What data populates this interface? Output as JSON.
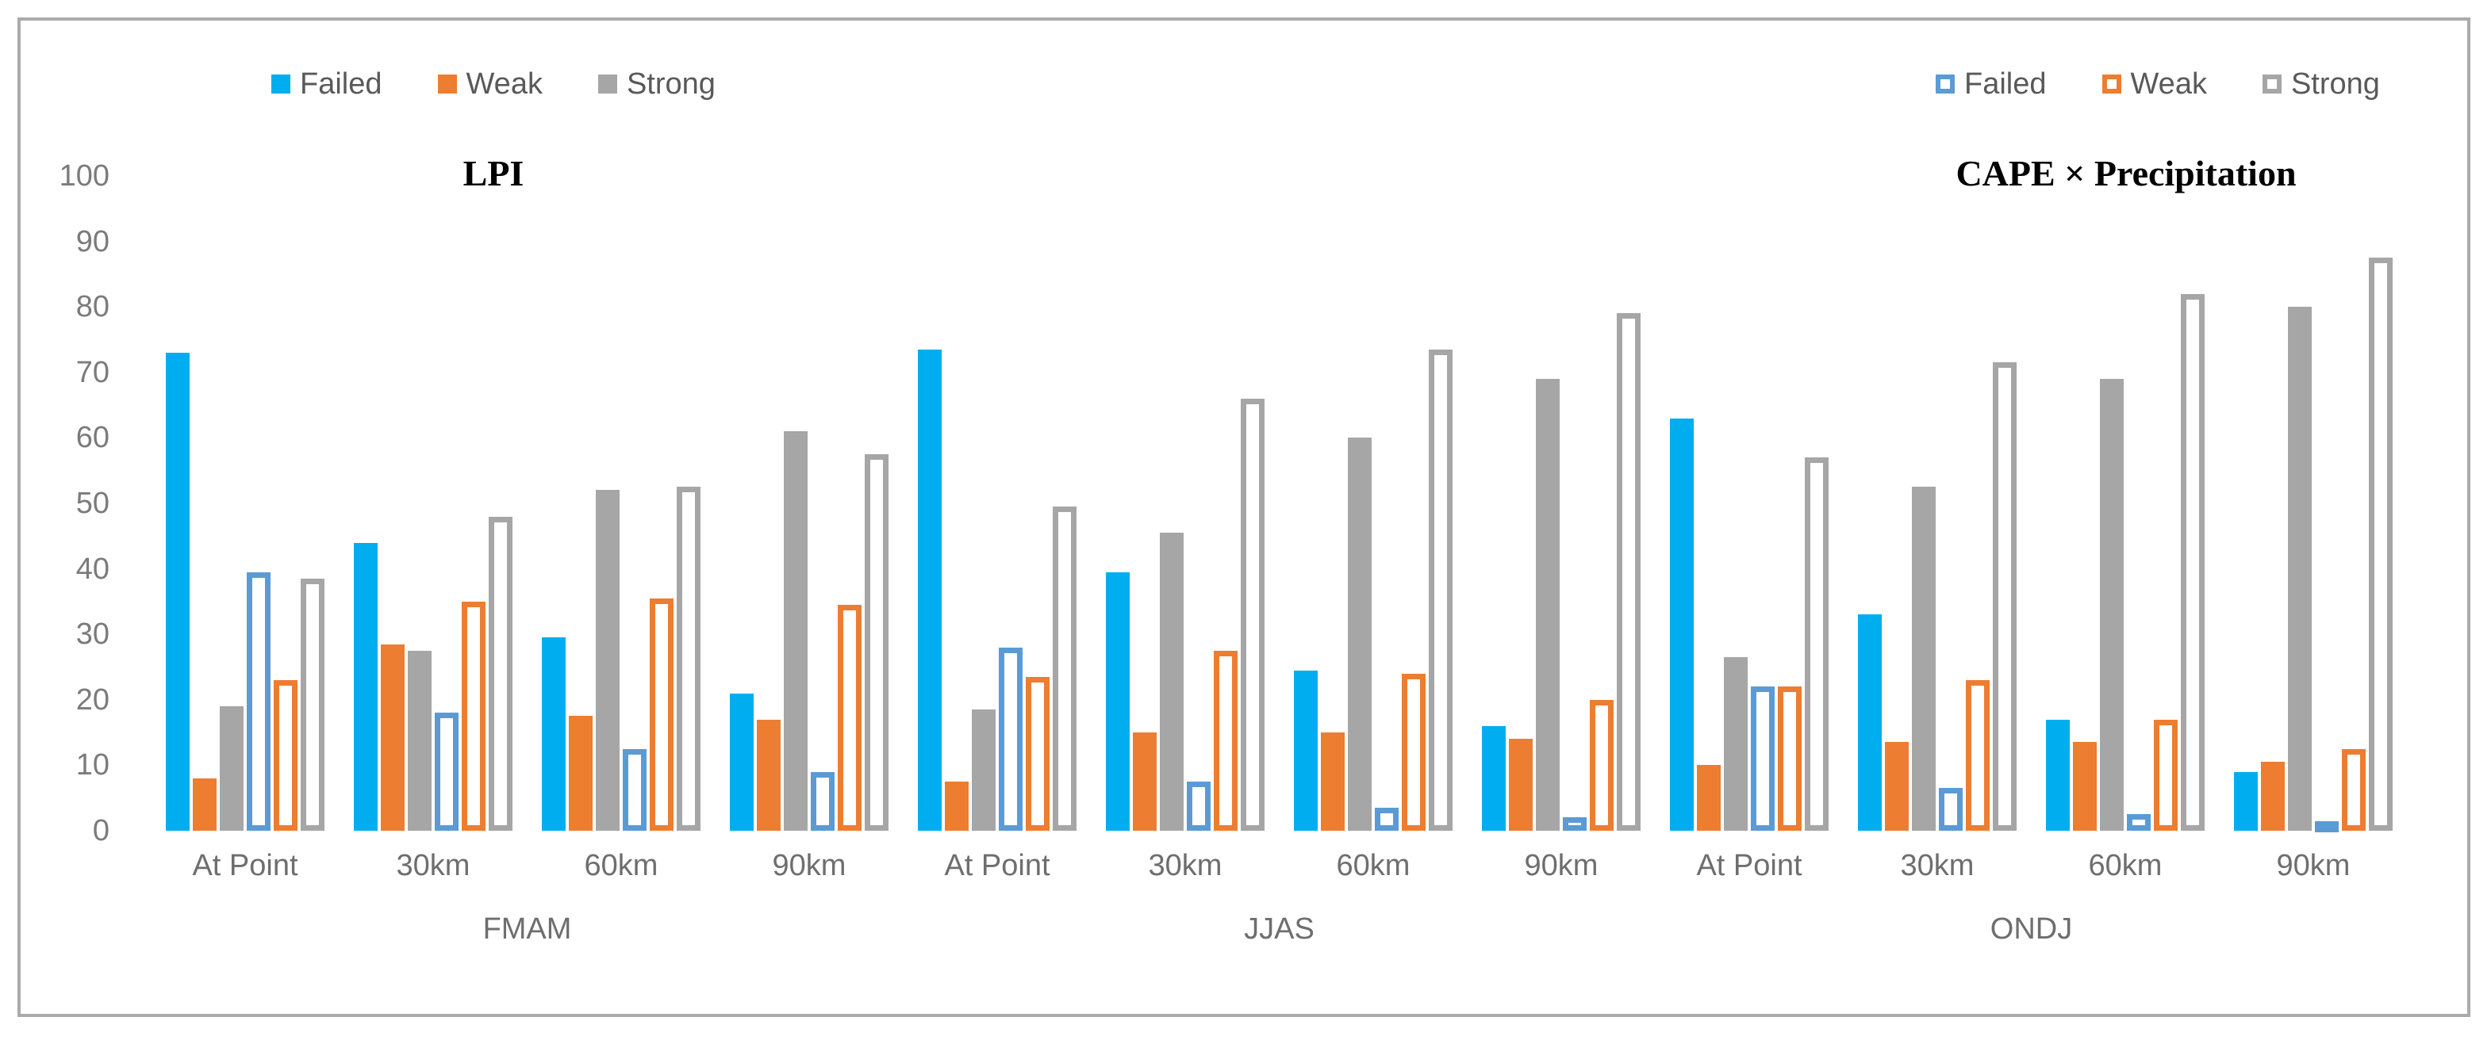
{
  "chart_data": {
    "type": "bar",
    "title_left": "LPI",
    "title_right": "CAPE × Precipitation",
    "ylabel": "",
    "xlabel": "",
    "ylim": [
      0,
      100
    ],
    "yticks": [
      0,
      10,
      20,
      30,
      40,
      50,
      60,
      70,
      80,
      90,
      100
    ],
    "grid": "off",
    "legend_position": "top",
    "legend_left": {
      "style": "solid",
      "items": [
        {
          "label": "Failed",
          "color": "#00AEEF"
        },
        {
          "label": "Weak",
          "color": "#ED7D31"
        },
        {
          "label": "Strong",
          "color": "#A6A6A6"
        }
      ]
    },
    "legend_right": {
      "style": "outlined",
      "items": [
        {
          "label": "Failed",
          "color": "#5B9BD5"
        },
        {
          "label": "Weak",
          "color": "#ED7D31"
        },
        {
          "label": "Strong",
          "color": "#A6A6A6"
        }
      ]
    },
    "seasons": [
      {
        "label": "FMAM",
        "groups": [
          0,
          1,
          2,
          3
        ]
      },
      {
        "label": "JJAS",
        "groups": [
          4,
          5,
          6,
          7
        ]
      },
      {
        "label": "ONDJ",
        "groups": [
          8,
          9,
          10,
          11
        ]
      }
    ],
    "group_labels": [
      "At Point",
      "30km",
      "60km",
      "90km",
      "At Point",
      "30km",
      "60km",
      "90km",
      "At Point",
      "30km",
      "60km",
      "90km"
    ],
    "series": [
      {
        "name": "LPI Failed",
        "panel": "LPI",
        "style": "solid",
        "color": "#00AEEF",
        "values": [
          73,
          44,
          29.5,
          21,
          73.5,
          39.5,
          24.5,
          16,
          63,
          33,
          17,
          9
        ]
      },
      {
        "name": "LPI Weak",
        "panel": "LPI",
        "style": "solid",
        "color": "#ED7D31",
        "values": [
          8,
          28.5,
          17.5,
          17,
          7.5,
          15,
          15,
          14,
          10,
          13.5,
          13.5,
          10.5
        ]
      },
      {
        "name": "LPI Strong",
        "panel": "LPI",
        "style": "solid",
        "color": "#A6A6A6",
        "values": [
          19,
          27.5,
          52,
          61,
          18.5,
          45.5,
          60,
          69,
          26.5,
          52.5,
          69,
          80
        ]
      },
      {
        "name": "CAPE × Precipitation Failed",
        "panel": "CAPE × Precipitation",
        "style": "outlined",
        "color": "#5B9BD5",
        "values": [
          39.5,
          18,
          12.5,
          9,
          28,
          7.5,
          3.5,
          2,
          22,
          6.5,
          2.5,
          1.5
        ]
      },
      {
        "name": "CAPE × Precipitation Weak",
        "panel": "CAPE × Precipitation",
        "style": "outlined",
        "color": "#ED7D31",
        "values": [
          23,
          35,
          35.5,
          34.5,
          23.5,
          27.5,
          24,
          20,
          22,
          23,
          17,
          12.5
        ]
      },
      {
        "name": "CAPE × Precipitation Strong",
        "panel": "CAPE × Precipitation",
        "style": "outlined",
        "color": "#A6A6A6",
        "values": [
          38.5,
          48,
          52.5,
          57.5,
          49.5,
          66,
          73.5,
          79,
          57,
          71.5,
          82,
          87.5
        ]
      }
    ]
  }
}
